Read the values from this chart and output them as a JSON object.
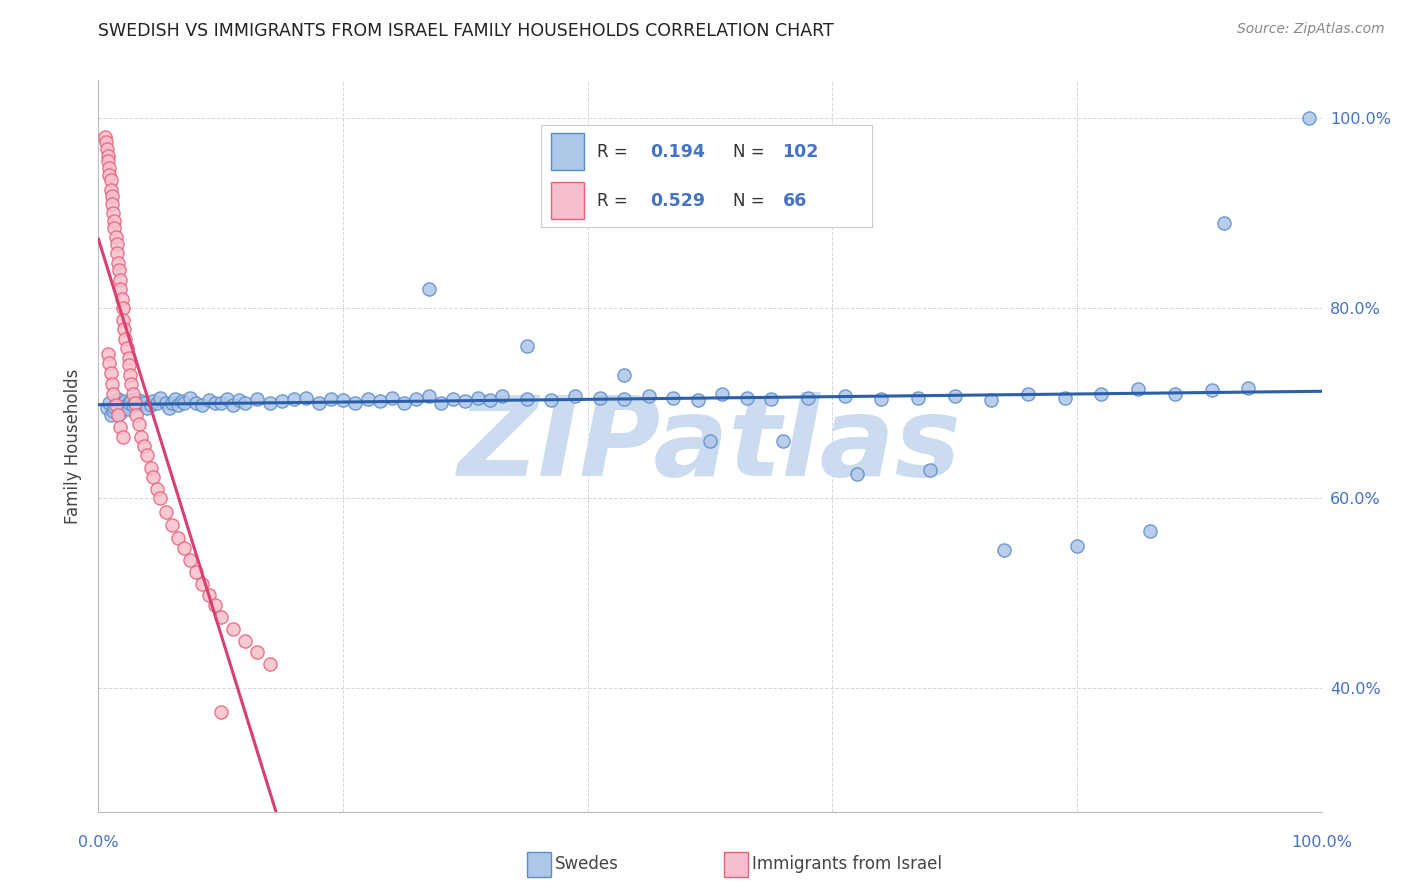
{
  "title": "SWEDISH VS IMMIGRANTS FROM ISRAEL FAMILY HOUSEHOLDS CORRELATION CHART",
  "source": "Source: ZipAtlas.com",
  "ylabel": "Family Households",
  "blue_R": 0.194,
  "blue_N": 102,
  "pink_R": 0.529,
  "pink_N": 66,
  "legend_labels": [
    "Swedes",
    "Immigrants from Israel"
  ],
  "blue_color": "#aec6e8",
  "pink_color": "#f7bfcc",
  "blue_edge_color": "#5b8cc8",
  "pink_edge_color": "#e8607a",
  "blue_line_color": "#2b5faa",
  "pink_line_color": "#d94070",
  "title_color": "#222222",
  "ylabel_color": "#444444",
  "tick_color_right": "#4472c4",
  "grid_color": "#d8d8d8",
  "watermark_color": "#ccdcf0",
  "watermark_text": "ZIPatlas",
  "xlim": [
    0.0,
    1.0
  ],
  "ylim": [
    0.27,
    1.04
  ],
  "y_ticks": [
    0.4,
    0.6,
    0.8,
    1.0
  ],
  "y_tick_labels": [
    "40.0%",
    "60.0%",
    "80.0%",
    "100.0%"
  ],
  "blue_x": [
    0.007,
    0.009,
    0.01,
    0.012,
    0.013,
    0.015,
    0.016,
    0.017,
    0.018,
    0.019,
    0.02,
    0.021,
    0.022,
    0.023,
    0.024,
    0.025,
    0.027,
    0.028,
    0.03,
    0.031,
    0.033,
    0.035,
    0.037,
    0.04,
    0.043,
    0.045,
    0.048,
    0.05,
    0.055,
    0.058,
    0.06,
    0.063,
    0.065,
    0.068,
    0.07,
    0.075,
    0.08,
    0.085,
    0.09,
    0.095,
    0.1,
    0.105,
    0.11,
    0.115,
    0.12,
    0.13,
    0.14,
    0.15,
    0.16,
    0.17,
    0.18,
    0.19,
    0.2,
    0.21,
    0.22,
    0.23,
    0.24,
    0.25,
    0.26,
    0.27,
    0.28,
    0.29,
    0.3,
    0.31,
    0.32,
    0.33,
    0.35,
    0.37,
    0.39,
    0.41,
    0.43,
    0.45,
    0.47,
    0.49,
    0.51,
    0.53,
    0.55,
    0.58,
    0.61,
    0.64,
    0.67,
    0.7,
    0.73,
    0.76,
    0.79,
    0.82,
    0.85,
    0.88,
    0.91,
    0.94,
    0.27,
    0.35,
    0.43,
    0.5,
    0.56,
    0.62,
    0.68,
    0.74,
    0.8,
    0.86,
    0.92,
    0.99
  ],
  "blue_y": [
    0.695,
    0.7,
    0.688,
    0.692,
    0.696,
    0.7,
    0.705,
    0.695,
    0.69,
    0.698,
    0.7,
    0.695,
    0.702,
    0.698,
    0.694,
    0.7,
    0.703,
    0.698,
    0.7,
    0.705,
    0.698,
    0.702,
    0.7,
    0.695,
    0.698,
    0.702,
    0.7,
    0.706,
    0.7,
    0.695,
    0.7,
    0.705,
    0.698,
    0.702,
    0.7,
    0.706,
    0.7,
    0.698,
    0.703,
    0.7,
    0.7,
    0.705,
    0.698,
    0.703,
    0.7,
    0.705,
    0.7,
    0.702,
    0.704,
    0.706,
    0.7,
    0.705,
    0.703,
    0.7,
    0.705,
    0.702,
    0.706,
    0.7,
    0.705,
    0.708,
    0.7,
    0.705,
    0.702,
    0.706,
    0.703,
    0.708,
    0.705,
    0.703,
    0.708,
    0.706,
    0.705,
    0.708,
    0.706,
    0.703,
    0.71,
    0.706,
    0.705,
    0.706,
    0.708,
    0.705,
    0.706,
    0.708,
    0.703,
    0.71,
    0.706,
    0.71,
    0.715,
    0.71,
    0.714,
    0.716,
    0.82,
    0.76,
    0.73,
    0.66,
    0.66,
    0.625,
    0.63,
    0.545,
    0.55,
    0.565,
    0.89,
    1.0
  ],
  "pink_x": [
    0.005,
    0.006,
    0.007,
    0.008,
    0.008,
    0.009,
    0.009,
    0.01,
    0.01,
    0.011,
    0.011,
    0.012,
    0.013,
    0.013,
    0.014,
    0.015,
    0.015,
    0.016,
    0.017,
    0.018,
    0.018,
    0.019,
    0.02,
    0.02,
    0.021,
    0.022,
    0.023,
    0.025,
    0.025,
    0.026,
    0.027,
    0.028,
    0.03,
    0.031,
    0.033,
    0.035,
    0.037,
    0.04,
    0.043,
    0.045,
    0.048,
    0.05,
    0.055,
    0.06,
    0.065,
    0.07,
    0.075,
    0.08,
    0.085,
    0.09,
    0.095,
    0.1,
    0.11,
    0.12,
    0.13,
    0.14,
    0.008,
    0.009,
    0.01,
    0.011,
    0.012,
    0.014,
    0.016,
    0.018,
    0.02,
    0.1
  ],
  "pink_y": [
    0.98,
    0.975,
    0.968,
    0.96,
    0.955,
    0.948,
    0.94,
    0.935,
    0.925,
    0.918,
    0.91,
    0.9,
    0.892,
    0.885,
    0.875,
    0.868,
    0.858,
    0.848,
    0.84,
    0.83,
    0.82,
    0.81,
    0.8,
    0.788,
    0.778,
    0.768,
    0.758,
    0.748,
    0.74,
    0.73,
    0.72,
    0.71,
    0.7,
    0.688,
    0.678,
    0.665,
    0.655,
    0.645,
    0.632,
    0.622,
    0.61,
    0.6,
    0.585,
    0.572,
    0.558,
    0.548,
    0.535,
    0.522,
    0.51,
    0.498,
    0.488,
    0.475,
    0.462,
    0.45,
    0.438,
    0.425,
    0.752,
    0.742,
    0.732,
    0.72,
    0.71,
    0.698,
    0.688,
    0.675,
    0.665,
    0.375
  ]
}
